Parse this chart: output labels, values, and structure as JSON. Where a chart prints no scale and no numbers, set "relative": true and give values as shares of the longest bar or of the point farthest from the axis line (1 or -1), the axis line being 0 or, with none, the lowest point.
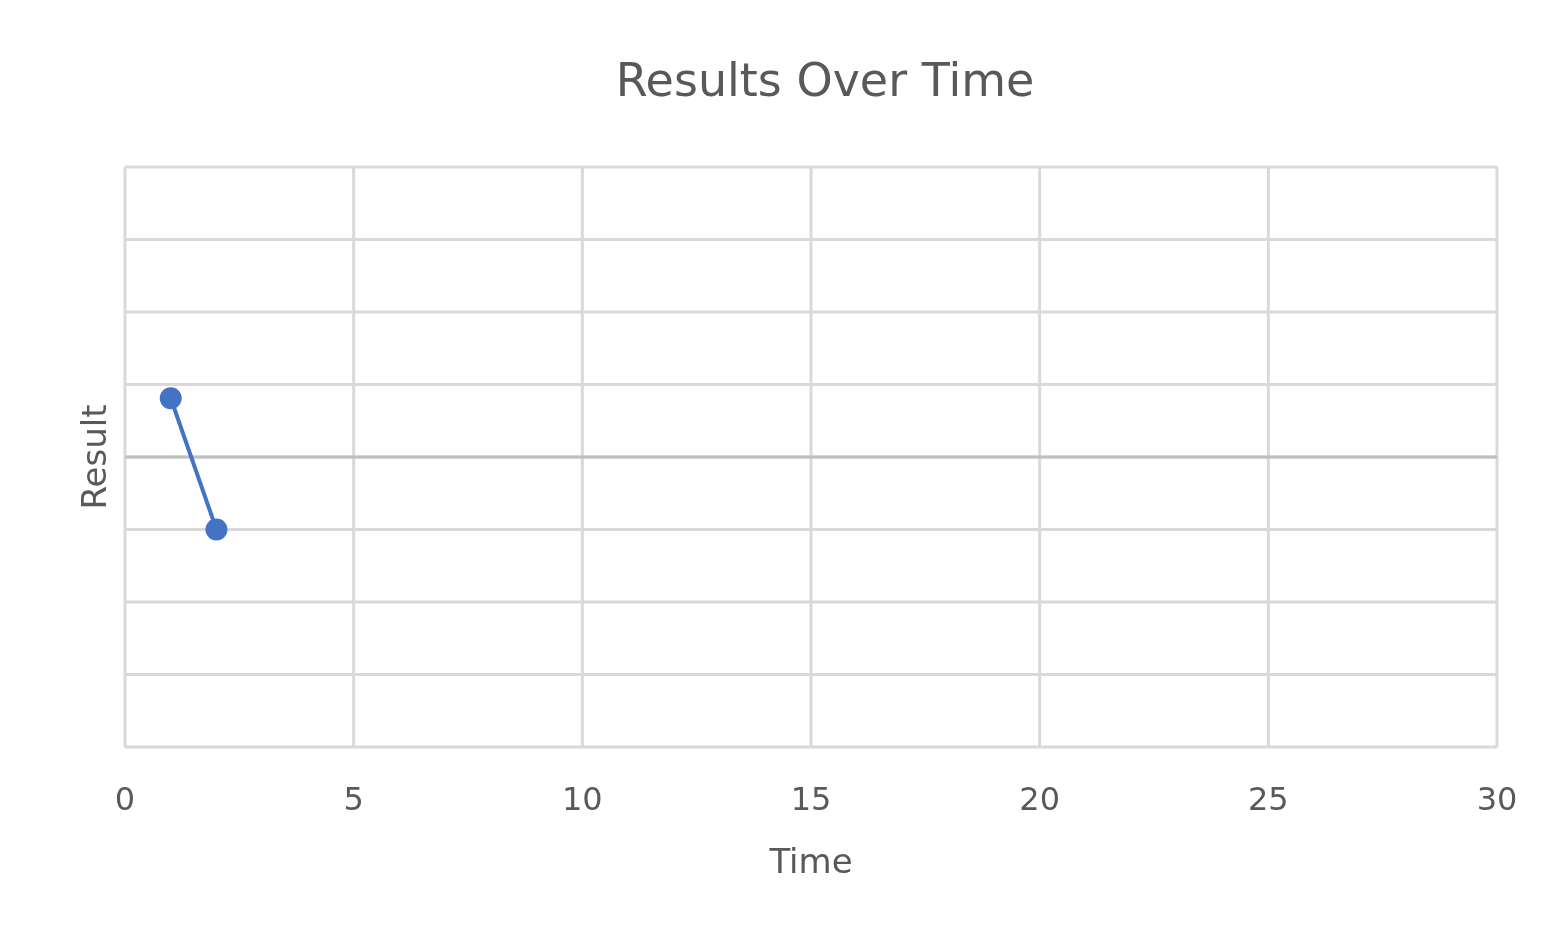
{
  "chart_data": {
    "type": "line",
    "title": "Results Over Time",
    "xlabel": "Time",
    "ylabel": "Result",
    "relative": true,
    "xlim": [
      0,
      30
    ],
    "xticks": [
      0,
      5,
      10,
      15,
      20,
      25,
      30
    ],
    "x": [
      1,
      2
    ],
    "series": [
      {
        "color": "#4472c4",
        "values": [
          0.81,
          -1
        ]
      }
    ],
    "grid": true,
    "marker": "circle",
    "line_style": "solid"
  }
}
